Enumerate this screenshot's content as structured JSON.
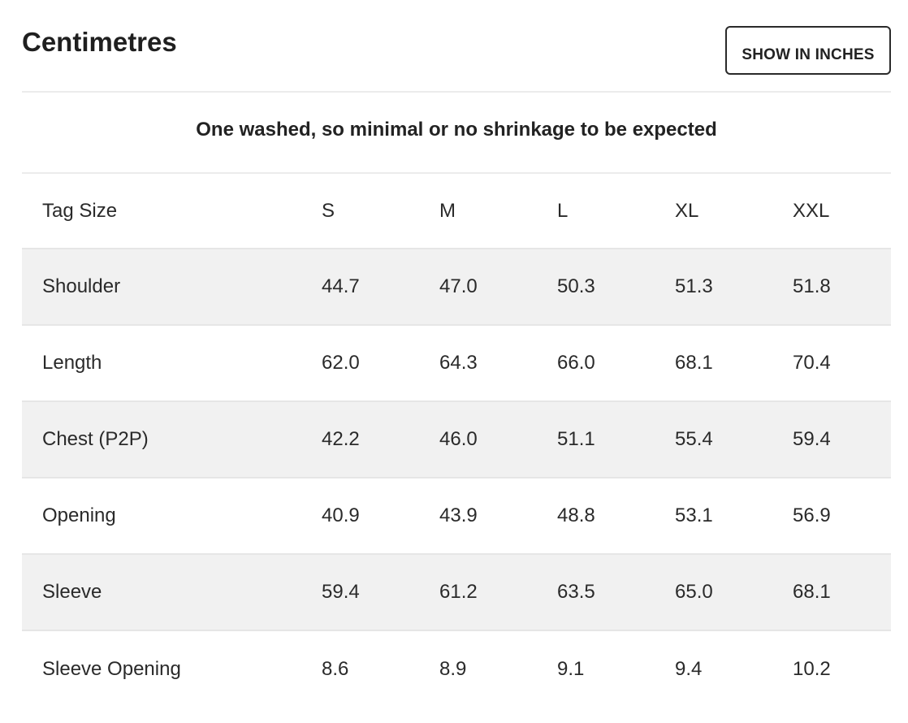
{
  "header": {
    "title": "Centimetres",
    "toggle_label": "SHOW IN INCHES"
  },
  "notice": "One washed, so minimal or no shrinkage to be expected",
  "table": {
    "headers": [
      "Tag Size",
      "S",
      "M",
      "L",
      "XL",
      "XXL"
    ],
    "rows": [
      {
        "label": "Shoulder",
        "values": [
          "44.7",
          "47.0",
          "50.3",
          "51.3",
          "51.8"
        ]
      },
      {
        "label": "Length",
        "values": [
          "62.0",
          "64.3",
          "66.0",
          "68.1",
          "70.4"
        ]
      },
      {
        "label": "Chest (P2P)",
        "values": [
          "42.2",
          "46.0",
          "51.1",
          "55.4",
          "59.4"
        ]
      },
      {
        "label": "Opening",
        "values": [
          "40.9",
          "43.9",
          "48.8",
          "53.1",
          "56.9"
        ]
      },
      {
        "label": "Sleeve",
        "values": [
          "59.4",
          "61.2",
          "63.5",
          "65.0",
          "68.1"
        ]
      },
      {
        "label": "Sleeve Opening",
        "values": [
          "8.6",
          "8.9",
          "9.1",
          "9.4",
          "10.2"
        ]
      }
    ]
  }
}
